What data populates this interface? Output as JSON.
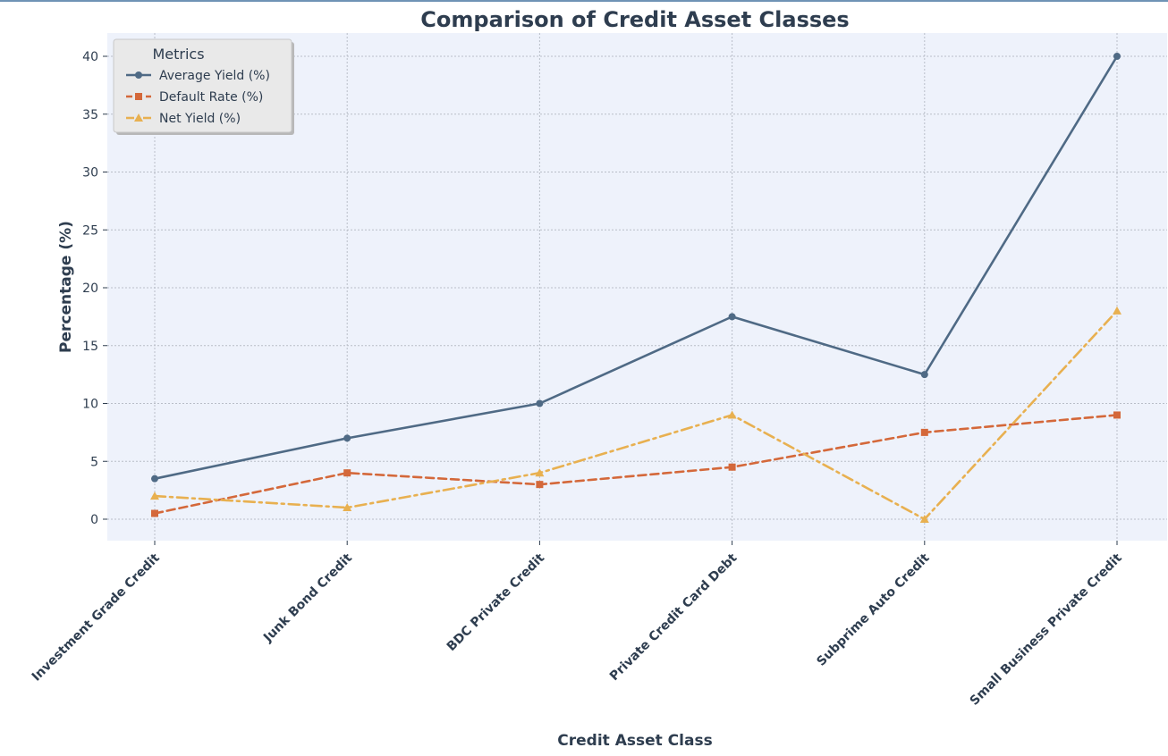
{
  "chart_data": {
    "type": "line",
    "title": "Comparison of Credit Asset Classes",
    "xlabel": "Credit Asset Class",
    "ylabel": "Percentage (%)",
    "categories": [
      "Investment Grade Credit",
      "Junk Bond Credit",
      "BDC Private Credit",
      "Private Credit Card Debt",
      "Subprime Auto Credit",
      "Small Business Private Credit"
    ],
    "yticks": [
      0,
      5,
      10,
      15,
      20,
      25,
      30,
      35,
      40
    ],
    "ylim": [
      -2,
      42
    ],
    "grid": true,
    "legend": {
      "title": "Metrics",
      "placement": "top-left"
    },
    "series": [
      {
        "name": "Average Yield (%)",
        "values": [
          3.5,
          7,
          10,
          17.5,
          12.5,
          40
        ],
        "color": "#4f6a85",
        "style": "solid",
        "marker": "circle"
      },
      {
        "name": "Default Rate (%)",
        "values": [
          0.5,
          4,
          3,
          4.5,
          7.5,
          9
        ],
        "color": "#d4683a",
        "style": "dashed",
        "marker": "square"
      },
      {
        "name": "Net Yield (%)",
        "values": [
          2,
          1,
          4,
          9,
          0,
          18
        ],
        "color": "#e8b050",
        "style": "dashdot",
        "marker": "triangle"
      }
    ]
  }
}
